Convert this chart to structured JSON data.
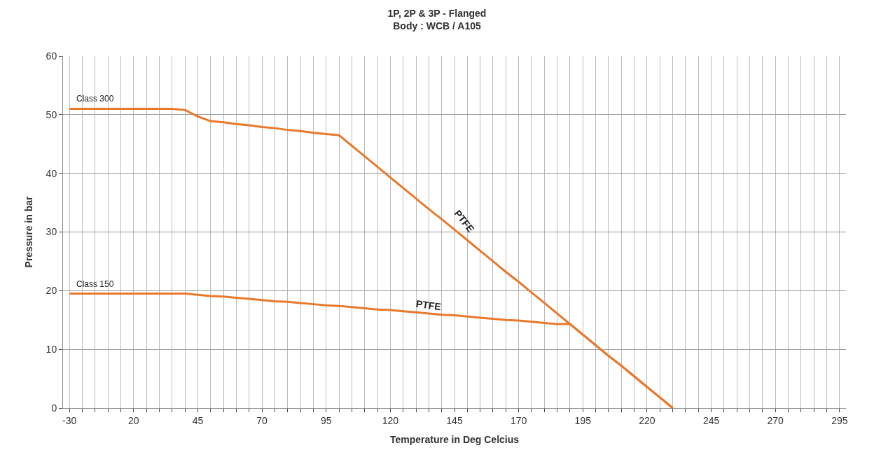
{
  "chart_data": {
    "type": "line",
    "title": "1P, 2P & 3P - Flanged\nBody : WCB / A105",
    "xlabel": "Temperature in Deg Celcius",
    "ylabel": "Pressure in bar",
    "categories": [
      "-30",
      null,
      null,
      null,
      null,
      "20",
      null,
      null,
      null,
      null,
      "45",
      null,
      null,
      null,
      null,
      "70",
      null,
      null,
      null,
      null,
      "95",
      null,
      null,
      null,
      null,
      "120",
      null,
      null,
      null,
      null,
      "145",
      null,
      null,
      null,
      null,
      "170",
      null,
      null,
      null,
      null,
      "195",
      null,
      null,
      null,
      null,
      "220",
      null,
      null,
      null,
      null,
      "245",
      null,
      null,
      null,
      null,
      "270",
      null,
      null,
      null,
      null,
      "295"
    ],
    "series": [
      {
        "name": "Class 300",
        "color": "#e8792b",
        "values": [
          51,
          51,
          51,
          51,
          51,
          51,
          51,
          51,
          51,
          50.8,
          49.7,
          48.9,
          48.7,
          48.4,
          48.2,
          47.9,
          47.7,
          47.4,
          47.2,
          46.9,
          46.7,
          46.5,
          44.7,
          42.9,
          41.1,
          39.3,
          37.5,
          35.7,
          33.9,
          32.2,
          30.4,
          28.6,
          26.8,
          25.0,
          23.2,
          21.5,
          19.7,
          17.9,
          16.1,
          14.3,
          12.5,
          10.7,
          8.9,
          7.2,
          5.4,
          3.6,
          1.8,
          0,
          null,
          null,
          null,
          null,
          null,
          null,
          null,
          null,
          null,
          null,
          null,
          null,
          null
        ]
      },
      {
        "name": "Class 150",
        "color": "#e8792b",
        "values": [
          19.5,
          19.5,
          19.5,
          19.5,
          19.5,
          19.5,
          19.5,
          19.5,
          19.5,
          19.5,
          19.3,
          19.1,
          19.0,
          18.8,
          18.6,
          18.4,
          18.2,
          18.1,
          17.9,
          17.7,
          17.5,
          17.4,
          17.2,
          17.0,
          16.8,
          16.7,
          16.5,
          16.3,
          16.1,
          15.9,
          15.8,
          15.6,
          15.4,
          15.2,
          15.0,
          14.9,
          14.7,
          14.5,
          14.3,
          14.3,
          12.5,
          10.7,
          8.9,
          7.2,
          5.4,
          3.6,
          1.8,
          0,
          null,
          null,
          null,
          null,
          null,
          null,
          null,
          null,
          null,
          null,
          null,
          null,
          null
        ]
      }
    ],
    "annotations": [
      "PTFE",
      "PTFE"
    ],
    "ylim": [
      0,
      60
    ],
    "yticks": [
      0,
      10,
      20,
      30,
      40,
      50,
      60
    ],
    "grid": true,
    "legend": false,
    "marker": "none",
    "line_style": "solid"
  }
}
